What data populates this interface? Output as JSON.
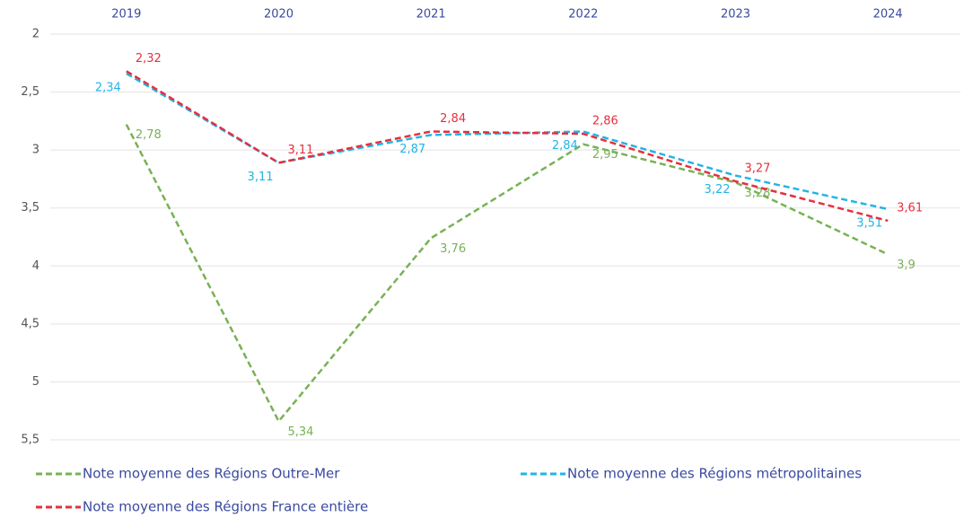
{
  "chart_data": {
    "type": "line",
    "categories": [
      "2019",
      "2020",
      "2021",
      "2022",
      "2023",
      "2024"
    ],
    "ylim": [
      2,
      5.5
    ],
    "y_inverted": true,
    "yticks": [
      2,
      {
        "value": 2.5,
        "label": "2,5"
      },
      3,
      {
        "value": 3.5,
        "label": "3,5"
      },
      4,
      {
        "value": 4.5,
        "label": "4,5"
      },
      5,
      {
        "value": 5.5,
        "label": "5,5"
      }
    ],
    "grid": true,
    "series": [
      {
        "name": "Note moyenne des Régions Outre-Mer",
        "color": "#77b255",
        "values": [
          2.78,
          5.34,
          3.76,
          2.95,
          3.28,
          3.9
        ],
        "value_labels": [
          "2,78",
          "5,34",
          "3,76",
          "2,95",
          "3,28",
          "3,9"
        ]
      },
      {
        "name": "Note moyenne des Régions métropolitaines",
        "color": "#22b4e6",
        "values": [
          2.34,
          3.11,
          2.87,
          2.84,
          3.22,
          3.51
        ],
        "value_labels": [
          "2,34",
          "3,11",
          "2,87",
          "2,84",
          "3,22",
          "3,51"
        ]
      },
      {
        "name": "Note moyenne des Régions France entière",
        "color": "#e5303e",
        "values": [
          2.32,
          3.11,
          2.84,
          2.86,
          3.27,
          3.61
        ],
        "value_labels": [
          "2,32",
          "3,11",
          "2,84",
          "2,86",
          "3,27",
          "3,61"
        ]
      }
    ]
  }
}
